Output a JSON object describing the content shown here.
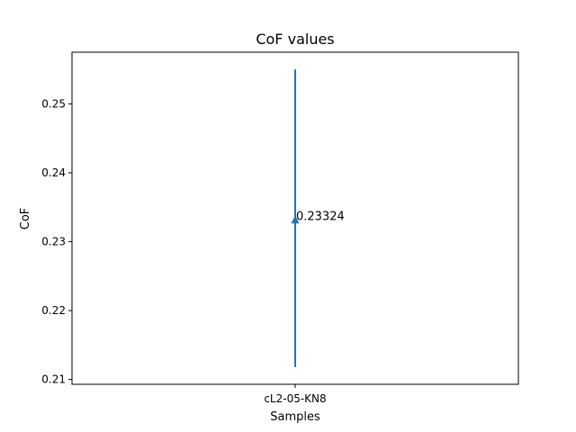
{
  "chart_data": {
    "type": "errorbar",
    "title": "CoF values",
    "xlabel": "Samples",
    "ylabel": "CoF",
    "categories": [
      "cL2-05-KN8"
    ],
    "series": [
      {
        "values": [
          0.23324
        ],
        "error_low": [
          0.2118
        ],
        "error_high": [
          0.255
        ],
        "marker": "triangle-up",
        "color": "#1f77b4"
      }
    ],
    "data_labels": [
      "0.23324"
    ],
    "ylim": [
      0.2093,
      0.2575
    ],
    "yticks": [
      0.21,
      0.22,
      0.23,
      0.24,
      0.25
    ],
    "ytick_labels": [
      "0.21",
      "0.22",
      "0.23",
      "0.24",
      "0.25"
    ],
    "grid": false,
    "legend": "none"
  }
}
